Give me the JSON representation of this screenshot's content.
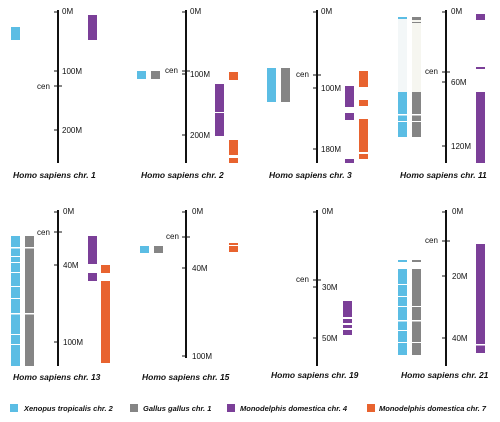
{
  "colors": {
    "xenopus": "#5bbde4",
    "gallus": "#858585",
    "mono4": "#7b3f98",
    "mono7": "#e8632f",
    "axis": "#111111",
    "gap": "#ffffff"
  },
  "panels": [
    {
      "title": "Homo sapiens chr. 1",
      "ticks": [
        {
          "label": "0M"
        },
        {
          "label": "100M"
        },
        {
          "label": "200M"
        }
      ],
      "cen": "cen"
    },
    {
      "title": "Homo sapiens chr. 2",
      "ticks": [
        {
          "label": "0M"
        },
        {
          "label": "100M"
        },
        {
          "label": "200M"
        }
      ],
      "cen": "cen"
    },
    {
      "title": "Homo sapiens chr. 3",
      "ticks": [
        {
          "label": "0M"
        },
        {
          "label": "100M"
        },
        {
          "label": "180M"
        }
      ],
      "cen": "cen"
    },
    {
      "title": "Homo sapiens chr. 11",
      "ticks": [
        {
          "label": "0M"
        },
        {
          "label": "60M"
        },
        {
          "label": "120M"
        }
      ],
      "cen": "cen"
    },
    {
      "title": "Homo sapiens chr. 13",
      "ticks": [
        {
          "label": "0M"
        },
        {
          "label": "40M"
        },
        {
          "label": "100M"
        }
      ],
      "cen": "cen"
    },
    {
      "title": "Homo sapiens chr. 15",
      "ticks": [
        {
          "label": "0M"
        },
        {
          "label": "40M"
        },
        {
          "label": "100M"
        }
      ],
      "cen": "cen"
    },
    {
      "title": "Homo sapiens chr. 19",
      "ticks": [
        {
          "label": "0M"
        },
        {
          "label": "30M"
        },
        {
          "label": "50M"
        }
      ],
      "cen": "cen"
    },
    {
      "title": "Homo sapiens chr. 21",
      "ticks": [
        {
          "label": "0M"
        },
        {
          "label": "20M"
        },
        {
          "label": "40M"
        }
      ],
      "cen": "cen"
    }
  ],
  "legend": [
    {
      "label": "Xenopus tropicalis chr. 2",
      "color": "#5bbde4"
    },
    {
      "label": "Gallus gallus chr. 1",
      "color": "#858585"
    },
    {
      "label": "Monodelphis domestica chr. 4",
      "color": "#7b3f98"
    },
    {
      "label": "Monodelphis domestica chr. 7",
      "color": "#e8632f"
    }
  ]
}
